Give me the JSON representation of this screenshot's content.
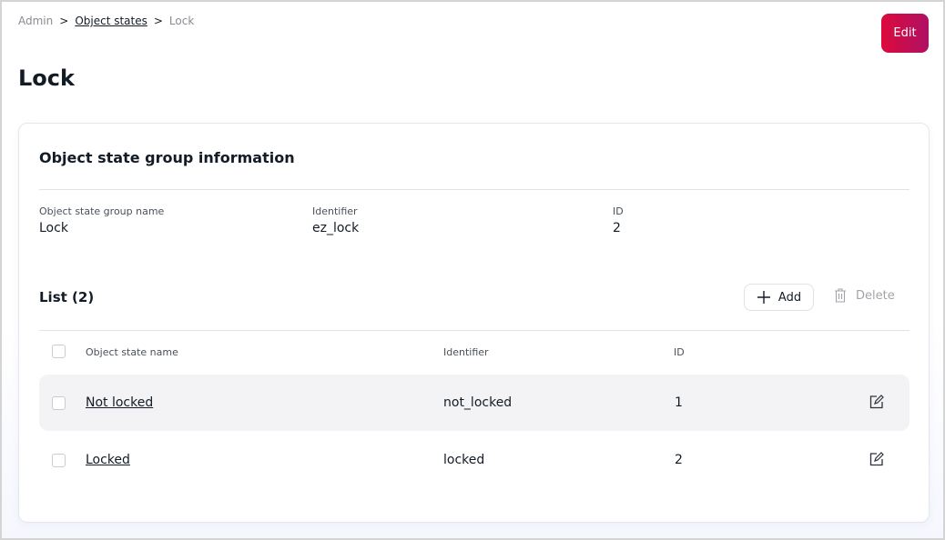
{
  "breadcrumb": {
    "items": [
      "Admin",
      "Object states",
      "Lock"
    ],
    "separator": ">"
  },
  "page_title": "Lock",
  "edit_label": "Edit",
  "colors": {
    "accent_start": "#dc0a3c",
    "accent_end": "#ae1164"
  },
  "info": {
    "heading": "Object state group information",
    "fields": [
      {
        "label": "Object state group name",
        "value": "Lock"
      },
      {
        "label": "Identifier",
        "value": "ez_lock"
      },
      {
        "label": "ID",
        "value": "2"
      }
    ]
  },
  "list": {
    "heading": "List (2)",
    "add_label": "Add",
    "delete_label": "Delete",
    "columns": [
      "Object state name",
      "Identifier",
      "ID"
    ],
    "rows": [
      {
        "name": "Not locked",
        "identifier": "not_locked",
        "id": "1"
      },
      {
        "name": "Locked",
        "identifier": "locked",
        "id": "2"
      }
    ]
  }
}
